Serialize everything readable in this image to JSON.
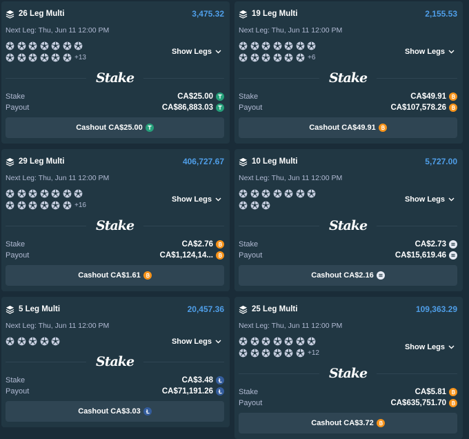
{
  "cards": [
    {
      "title": "26 Leg Multi",
      "odds": "3,475.32",
      "next_leg": "Next Leg: Thu, Jun 11 12:00 PM",
      "extra_legs": "+13",
      "show_legs": "Show Legs",
      "logo": "Stake",
      "stake_label": "Stake",
      "stake": "CA$25.00",
      "payout_label": "Payout",
      "payout": "CA$86,883.03",
      "cashout": "Cashout CA$25.00"
    },
    {
      "title": "19 Leg Multi",
      "odds": "2,155.53",
      "next_leg": "Next Leg: Thu, Jun 11 12:00 PM",
      "extra_legs": "+6",
      "show_legs": "Show Legs",
      "logo": "Stake",
      "stake_label": "Stake",
      "stake": "CA$49.91",
      "payout_label": "Payout",
      "payout": "CA$107,578.26",
      "cashout": "Cashout CA$49.91"
    },
    {
      "title": "29 Leg Multi",
      "odds": "406,727.67",
      "next_leg": "Next Leg: Thu, Jun 11 12:00 PM",
      "extra_legs": "+16",
      "show_legs": "Show Legs",
      "logo": "Stake",
      "stake_label": "Stake",
      "stake": "CA$2.76",
      "payout_label": "Payout",
      "payout": "CA$1,124,14...",
      "cashout": "Cashout CA$1.61"
    },
    {
      "title": "10 Leg Multi",
      "odds": "5,727.00",
      "next_leg": "Next Leg: Thu, Jun 11 12:00 PM",
      "show_legs": "Show Legs",
      "logo": "Stake",
      "stake_label": "Stake",
      "stake": "CA$2.73",
      "payout_label": "Payout",
      "payout": "CA$15,619.46",
      "cashout": "Cashout CA$2.16"
    },
    {
      "title": "5 Leg Multi",
      "odds": "20,457.36",
      "next_leg": "Next Leg: Thu, Jun 11 12:00 PM",
      "show_legs": "Show Legs",
      "logo": "Stake",
      "stake_label": "Stake",
      "stake": "CA$3.48",
      "payout_label": "Payout",
      "payout": "CA$71,191.26",
      "cashout": "Cashout CA$3.03"
    },
    {
      "title": "25 Leg Multi",
      "odds": "109,363.29",
      "next_leg": "Next Leg: Thu, Jun 11 12:00 PM",
      "extra_legs": "+12",
      "show_legs": "Show Legs",
      "logo": "Stake",
      "stake_label": "Stake",
      "stake": "CA$5.81",
      "payout_label": "Payout",
      "payout": "CA$635,751.70",
      "cashout": "Cashout CA$3.72"
    }
  ]
}
